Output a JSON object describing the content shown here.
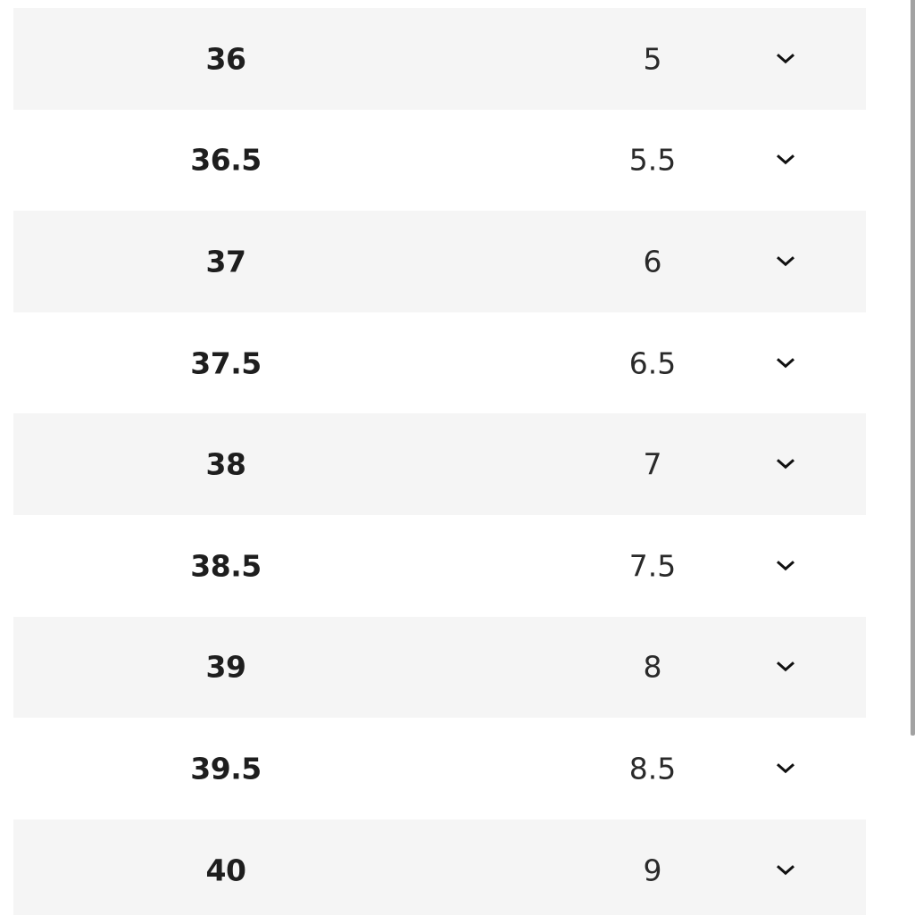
{
  "size_rows": [
    {
      "eu": "36",
      "us": "5"
    },
    {
      "eu": "36.5",
      "us": "5.5"
    },
    {
      "eu": "37",
      "us": "6"
    },
    {
      "eu": "37.5",
      "us": "6.5"
    },
    {
      "eu": "38",
      "us": "7"
    },
    {
      "eu": "38.5",
      "us": "7.5"
    },
    {
      "eu": "39",
      "us": "8"
    },
    {
      "eu": "39.5",
      "us": "8.5"
    },
    {
      "eu": "40",
      "us": "9"
    }
  ],
  "icons": {
    "expand": "chevron-down-icon"
  },
  "colors": {
    "row_alt": "#f5f5f5",
    "text": "#1e1e1e",
    "scrollbar": "#a2a2a2"
  }
}
